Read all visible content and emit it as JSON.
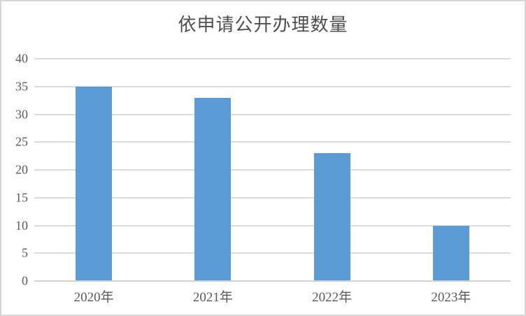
{
  "window": {
    "background": "#ffffff",
    "frame_border_color": "#d7d7d7"
  },
  "chart_data": {
    "type": "bar",
    "title": "依申请公开办理数量",
    "categories": [
      "2020年",
      "2021年",
      "2022年",
      "2023年"
    ],
    "values": [
      35,
      33,
      23,
      10
    ],
    "xlabel": "",
    "ylabel": "",
    "ylim": [
      0,
      40
    ],
    "ytick_interval": 5,
    "yticks": [
      0,
      5,
      10,
      15,
      20,
      25,
      30,
      35,
      40
    ],
    "grid": true,
    "legend_position": "none",
    "bar_color": "#5B9BD5",
    "gridline_color": "#DBDBDB",
    "axis_line_color": "#D2D2D2",
    "tick_label_color": "#595959",
    "title_color": "#4F4F4F"
  }
}
